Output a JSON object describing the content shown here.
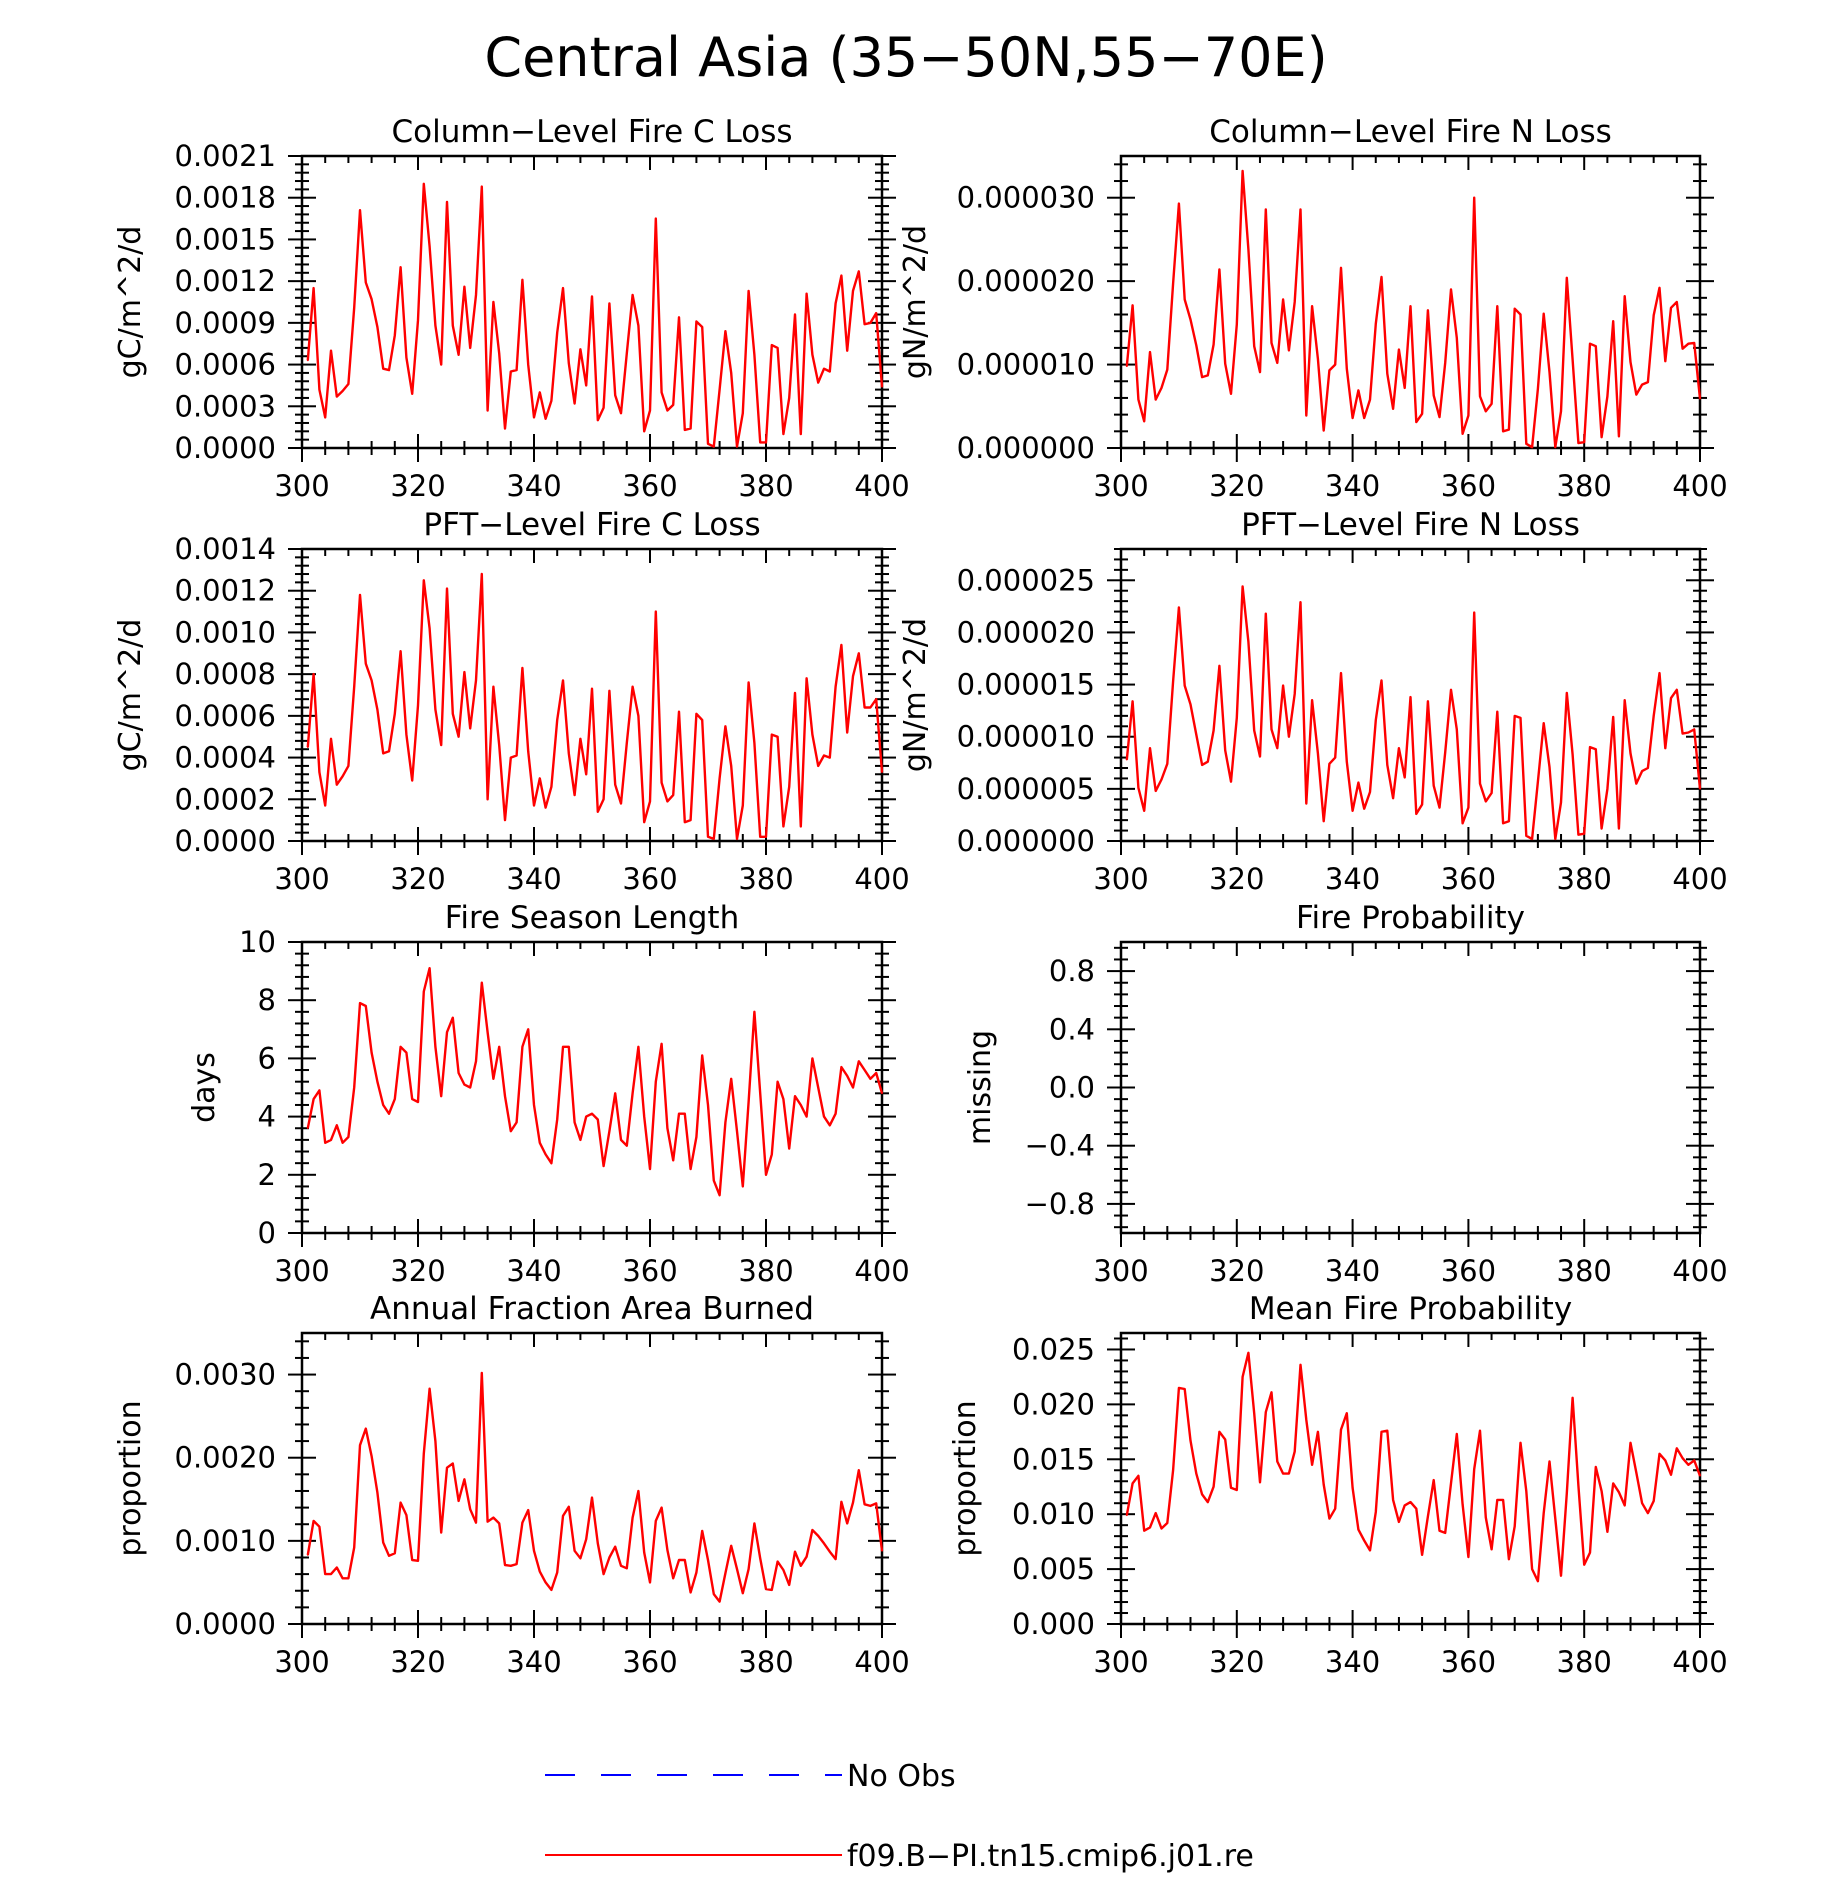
{
  "figure": {
    "title": "Central Asia (35−50N,55−70E)",
    "line_color": "#ff0000",
    "obs_color": "#0000ff"
  },
  "legend": {
    "items": [
      {
        "label": "No Obs",
        "style": "dashed",
        "color": "#0000ff"
      },
      {
        "label": "f09.B−PI.tn15.cmip6.j01.re",
        "style": "solid",
        "color": "#ff0000"
      }
    ]
  },
  "chart_data": [
    {
      "type": "line",
      "title": "Column−Level Fire C Loss",
      "ylabel": "gC/m^2/d",
      "xlim": [
        300,
        400
      ],
      "ylim": [
        0,
        0.0021
      ],
      "xticks": [
        300,
        320,
        340,
        360,
        380,
        400
      ],
      "yticks": [
        0.0,
        0.0003,
        0.0006,
        0.0009,
        0.0012,
        0.0015,
        0.0018,
        0.0021
      ],
      "ytick_labels": [
        "0.0000",
        "0.0003",
        "0.0006",
        "0.0009",
        "0.0012",
        "0.0015",
        "0.0018",
        "0.0021"
      ],
      "series": [
        {
          "x_start": 301,
          "values": [
            0.00063,
            0.00115,
            0.00042,
            0.00022,
            0.0007,
            0.00037,
            0.00041,
            0.00046,
            0.00101,
            0.00171,
            0.00119,
            0.00107,
            0.00087,
            0.00057,
            0.00056,
            0.00081,
            0.0013,
            0.00065,
            0.00039,
            0.00092,
            0.0019,
            0.00145,
            0.00088,
            0.0006,
            0.00177,
            0.00088,
            0.00067,
            0.00116,
            0.00072,
            0.0011,
            0.00188,
            0.00027,
            0.00105,
            0.00068,
            0.00014,
            0.00055,
            0.00056,
            0.00121,
            0.0006,
            0.00022,
            0.0004,
            0.00021,
            0.00034,
            0.00083,
            0.00115,
            0.00061,
            0.00032,
            0.00071,
            0.00045,
            0.00109,
            0.0002,
            0.00029,
            0.00104,
            0.00038,
            0.00025,
            0.00068,
            0.0011,
            0.00088,
            0.00012,
            0.00027,
            0.00165,
            0.0004,
            0.00027,
            0.00031,
            0.00094,
            0.00013,
            0.00014,
            0.00091,
            0.00087,
            3e-05,
            1e-05,
            0.00042,
            0.00084,
            0.00054,
            1e-05,
            0.00025,
            0.00113,
            0.00067,
            4e-05,
            4e-05,
            0.00074,
            0.00072,
            0.0001,
            0.00036,
            0.00096,
            0.0001,
            0.00111,
            0.00067,
            0.00047,
            0.00057,
            0.00055,
            0.00104,
            0.00124,
            0.0007,
            0.00113,
            0.00127,
            0.00089,
            0.0009,
            0.00097,
            0.00044
          ]
        }
      ]
    },
    {
      "type": "line",
      "title": "Column−Level Fire N Loss",
      "ylabel": "gN/m^2/d",
      "xlim": [
        300,
        400
      ],
      "ylim": [
        0,
        3.5e-05
      ],
      "xticks": [
        300,
        320,
        340,
        360,
        380,
        400
      ],
      "yticks": [
        0.0,
        1e-05,
        2e-05,
        3e-05
      ],
      "ytick_labels": [
        "0.000000",
        "0.000010",
        "0.000020",
        "0.000030"
      ],
      "series": [
        {
          "x_start": 301,
          "values": [
            9.8e-06,
            1.71e-05,
            5.8e-06,
            3.2e-06,
            1.15e-05,
            5.8e-06,
            7.2e-06,
            9.4e-06,
            1.97e-05,
            2.93e-05,
            1.78e-05,
            1.54e-05,
            1.23e-05,
            8.5e-06,
            8.7e-06,
            1.24e-05,
            2.14e-05,
            1.01e-05,
            6.5e-06,
            1.48e-05,
            3.32e-05,
            2.38e-05,
            1.22e-05,
            9.1e-06,
            2.86e-05,
            1.26e-05,
            1.02e-05,
            1.78e-05,
            1.17e-05,
            1.75e-05,
            2.86e-05,
            3.9e-06,
            1.7e-05,
            1.07e-05,
            2.1e-06,
            9.3e-06,
            1e-05,
            2.16e-05,
            9.5e-06,
            3.6e-06,
            6.9e-06,
            3.6e-06,
            5.8e-06,
            1.49e-05,
            2.05e-05,
            8.9e-06,
            4.7e-06,
            1.18e-05,
            7.2e-06,
            1.7e-05,
            3.1e-06,
            4.1e-06,
            1.65e-05,
            6.3e-06,
            3.7e-06,
            1.02e-05,
            1.9e-05,
            1.32e-05,
            1.7e-06,
            3.9e-06,
            3e-05,
            6.2e-06,
            4.4e-06,
            5.3e-06,
            1.7e-05,
            2e-06,
            2.2e-06,
            1.67e-05,
            1.6e-05,
            5e-07,
            1e-07,
            7.1e-06,
            1.61e-05,
            9.1e-06,
            1e-07,
            4.4e-06,
            2.04e-05,
            1.06e-05,
            6e-07,
            7e-07,
            1.25e-05,
            1.22e-05,
            1.3e-06,
            6.2e-06,
            1.52e-05,
            1.4e-06,
            1.82e-05,
            1.03e-05,
            6.4e-06,
            7.6e-06,
            7.9e-06,
            1.59e-05,
            1.92e-05,
            1.04e-05,
            1.68e-05,
            1.75e-05,
            1.19e-05,
            1.25e-05,
            1.26e-05,
            5.9e-06
          ]
        }
      ]
    },
    {
      "type": "line",
      "title": "PFT−Level Fire C Loss",
      "ylabel": "gC/m^2/d",
      "xlim": [
        300,
        400
      ],
      "ylim": [
        0,
        0.0014
      ],
      "xticks": [
        300,
        320,
        340,
        360,
        380,
        400
      ],
      "yticks": [
        0.0,
        0.0002,
        0.0004,
        0.0006,
        0.0008,
        0.001,
        0.0012,
        0.0014
      ],
      "ytick_labels": [
        "0.0000",
        "0.0002",
        "0.0004",
        "0.0006",
        "0.0008",
        "0.0010",
        "0.0012",
        "0.0014"
      ],
      "series": [
        {
          "x_start": 301,
          "values": [
            0.00045,
            0.0008,
            0.00033,
            0.00017,
            0.00049,
            0.00027,
            0.00031,
            0.00036,
            0.00074,
            0.00118,
            0.00085,
            0.00077,
            0.00063,
            0.00042,
            0.00043,
            0.00061,
            0.00091,
            0.00051,
            0.00029,
            0.00065,
            0.00125,
            0.00102,
            0.00063,
            0.00046,
            0.00121,
            0.00061,
            0.0005,
            0.00081,
            0.00054,
            0.00077,
            0.00128,
            0.0002,
            0.00074,
            0.00046,
            0.0001,
            0.0004,
            0.00041,
            0.00083,
            0.00043,
            0.00017,
            0.0003,
            0.00016,
            0.00026,
            0.00058,
            0.00077,
            0.00042,
            0.00022,
            0.00049,
            0.00032,
            0.00073,
            0.00014,
            0.0002,
            0.00072,
            0.00027,
            0.00018,
            0.00047,
            0.00074,
            0.0006,
            9e-05,
            0.00019,
            0.0011,
            0.00028,
            0.00019,
            0.00022,
            0.00062,
            9e-05,
            0.0001,
            0.00061,
            0.00058,
            2e-05,
            1e-05,
            0.0003,
            0.00055,
            0.00036,
            1e-05,
            0.00017,
            0.00076,
            0.00047,
            2e-05,
            2e-05,
            0.00051,
            0.0005,
            7e-05,
            0.00026,
            0.00071,
            7e-05,
            0.00078,
            0.00051,
            0.00036,
            0.00041,
            0.0004,
            0.00074,
            0.00094,
            0.00052,
            0.00079,
            0.0009,
            0.00064,
            0.00064,
            0.00068,
            0.00033
          ]
        }
      ]
    },
    {
      "type": "line",
      "title": "PFT−Level Fire N Loss",
      "ylabel": "gN/m^2/d",
      "xlim": [
        300,
        400
      ],
      "ylim": [
        0,
        2.8e-05
      ],
      "xticks": [
        300,
        320,
        340,
        360,
        380,
        400
      ],
      "yticks": [
        0.0,
        5e-06,
        1e-05,
        1.5e-05,
        2e-05,
        2.5e-05
      ],
      "ytick_labels": [
        "0.000000",
        "0.000005",
        "0.000010",
        "0.000015",
        "0.000020",
        "0.000025"
      ],
      "series": [
        {
          "x_start": 301,
          "values": [
            7.8e-06,
            1.34e-05,
            5.1e-06,
            2.9e-06,
            8.9e-06,
            4.8e-06,
            5.9e-06,
            7.4e-06,
            1.53e-05,
            2.24e-05,
            1.49e-05,
            1.31e-05,
            1.02e-05,
            7.3e-06,
            7.6e-06,
            1.06e-05,
            1.68e-05,
            8.7e-06,
            5.7e-06,
            1.18e-05,
            2.44e-05,
            1.91e-05,
            1.06e-05,
            8.1e-06,
            2.18e-05,
            1.07e-05,
            8.9e-06,
            1.49e-05,
            1e-05,
            1.41e-05,
            2.29e-05,
            3.6e-06,
            1.35e-05,
            8.4e-06,
            1.9e-06,
            7.4e-06,
            8e-06,
            1.61e-05,
            7.6e-06,
            2.9e-06,
            5.6e-06,
            3.1e-06,
            4.7e-06,
            1.16e-05,
            1.54e-05,
            7.3e-06,
            4.1e-06,
            8.9e-06,
            6.1e-06,
            1.38e-05,
            2.6e-06,
            3.5e-06,
            1.34e-05,
            5.3e-06,
            3.2e-06,
            8.5e-06,
            1.45e-05,
            1.07e-05,
            1.7e-06,
            3.2e-06,
            2.19e-05,
            5.5e-06,
            3.8e-06,
            4.6e-06,
            1.24e-05,
            1.7e-06,
            1.9e-06,
            1.2e-05,
            1.18e-05,
            5e-07,
            2e-07,
            5.7e-06,
            1.13e-05,
            7.1e-06,
            2e-07,
            3.7e-06,
            1.42e-05,
            8.3e-06,
            6e-07,
            7e-07,
            9e-06,
            8.8e-06,
            1.2e-06,
            5e-06,
            1.19e-05,
            1.2e-06,
            1.35e-05,
            8.4e-06,
            5.5e-06,
            6.7e-06,
            7e-06,
            1.2e-05,
            1.61e-05,
            8.9e-06,
            1.37e-05,
            1.45e-05,
            1.03e-05,
            1.04e-05,
            1.07e-05,
            5e-06
          ]
        }
      ]
    },
    {
      "type": "line",
      "title": "Fire Season Length",
      "ylabel": "days",
      "xlim": [
        300,
        400
      ],
      "ylim": [
        0,
        10
      ],
      "xticks": [
        300,
        320,
        340,
        360,
        380,
        400
      ],
      "yticks": [
        0,
        2,
        4,
        6,
        8,
        10
      ],
      "ytick_labels": [
        "0",
        "2",
        "4",
        "6",
        "8",
        "10"
      ],
      "series": [
        {
          "x_start": 301,
          "values": [
            3.6,
            4.6,
            4.9,
            3.1,
            3.2,
            3.7,
            3.1,
            3.3,
            5.0,
            7.9,
            7.8,
            6.2,
            5.2,
            4.4,
            4.1,
            4.6,
            6.4,
            6.2,
            4.6,
            4.5,
            8.3,
            9.1,
            6.4,
            4.7,
            6.9,
            7.4,
            5.5,
            5.1,
            5.0,
            5.9,
            8.6,
            6.9,
            5.3,
            6.4,
            4.7,
            3.5,
            3.8,
            6.4,
            7.0,
            4.4,
            3.1,
            2.7,
            2.4,
            3.9,
            6.4,
            6.4,
            3.8,
            3.2,
            4.0,
            4.1,
            3.9,
            2.3,
            3.5,
            4.8,
            3.2,
            3.0,
            4.8,
            6.4,
            4.0,
            2.2,
            5.2,
            6.5,
            3.6,
            2.5,
            4.1,
            4.1,
            2.2,
            3.3,
            6.1,
            4.4,
            1.8,
            1.3,
            3.8,
            5.3,
            3.5,
            1.6,
            4.5,
            7.6,
            4.8,
            2.0,
            2.7,
            5.2,
            4.6,
            2.9,
            4.7,
            4.4,
            4.0,
            6.0,
            5.0,
            4.0,
            3.7,
            4.1,
            5.7,
            5.4,
            5.0,
            5.9,
            5.6,
            5.3,
            5.5,
            4.8
          ]
        }
      ]
    },
    {
      "type": "line",
      "title": "Fire Probability",
      "ylabel": "missing",
      "xlim": [
        300,
        400
      ],
      "ylim": [
        -1,
        1
      ],
      "xticks": [
        300,
        320,
        340,
        360,
        380,
        400
      ],
      "yticks": [
        -0.8,
        -0.4,
        0.0,
        0.4,
        0.8
      ],
      "ytick_labels": [
        "−0.8",
        "−0.4",
        "0.0",
        "0.4",
        "0.8"
      ],
      "series": []
    },
    {
      "type": "line",
      "title": "Annual Fraction Area Burned",
      "ylabel": "proportion",
      "xlim": [
        300,
        400
      ],
      "ylim": [
        0,
        0.0035
      ],
      "xticks": [
        300,
        320,
        340,
        360,
        380,
        400
      ],
      "yticks": [
        0.0,
        0.001,
        0.002,
        0.003
      ],
      "ytick_labels": [
        "0.0000",
        "0.0010",
        "0.0020",
        "0.0030"
      ],
      "series": [
        {
          "x_start": 301,
          "values": [
            0.00083,
            0.00124,
            0.00117,
            0.0006,
            0.0006,
            0.00068,
            0.00055,
            0.00055,
            0.00092,
            0.00215,
            0.00235,
            0.00202,
            0.00158,
            0.00098,
            0.00082,
            0.00085,
            0.00146,
            0.00131,
            0.00077,
            0.00076,
            0.00205,
            0.00283,
            0.0022,
            0.0011,
            0.00188,
            0.00193,
            0.00148,
            0.00174,
            0.00138,
            0.00122,
            0.00302,
            0.00123,
            0.00128,
            0.00121,
            0.00071,
            0.0007,
            0.00072,
            0.00122,
            0.00137,
            0.00088,
            0.00063,
            0.0005,
            0.00041,
            0.00062,
            0.0013,
            0.00141,
            0.00088,
            0.00079,
            0.00102,
            0.00152,
            0.00097,
            0.0006,
            0.0008,
            0.00093,
            0.0007,
            0.00067,
            0.00128,
            0.0016,
            0.00086,
            0.0005,
            0.00124,
            0.0014,
            0.00089,
            0.00055,
            0.00077,
            0.00077,
            0.00038,
            0.00062,
            0.00112,
            0.00077,
            0.00036,
            0.00027,
            0.00061,
            0.00094,
            0.00066,
            0.00037,
            0.00066,
            0.00121,
            0.00079,
            0.00042,
            0.00041,
            0.00075,
            0.00065,
            0.00047,
            0.00087,
            0.0007,
            0.00081,
            0.00113,
            0.00106,
            0.00097,
            0.00087,
            0.00078,
            0.00147,
            0.00121,
            0.00146,
            0.00185,
            0.00144,
            0.00142,
            0.00145,
            0.00088
          ]
        }
      ]
    },
    {
      "type": "line",
      "title": "Mean Fire Probability",
      "ylabel": "proportion",
      "xlim": [
        300,
        400
      ],
      "ylim": [
        0,
        0.0265
      ],
      "xticks": [
        300,
        320,
        340,
        360,
        380,
        400
      ],
      "yticks": [
        0.0,
        0.005,
        0.01,
        0.015,
        0.02,
        0.025
      ],
      "ytick_labels": [
        "0.000",
        "0.005",
        "0.010",
        "0.015",
        "0.020",
        "0.025"
      ],
      "series": [
        {
          "x_start": 301,
          "values": [
            0.0099,
            0.0128,
            0.0135,
            0.0085,
            0.0088,
            0.0101,
            0.0087,
            0.0092,
            0.014,
            0.0215,
            0.0214,
            0.0167,
            0.0137,
            0.0118,
            0.0111,
            0.0125,
            0.0175,
            0.0168,
            0.0124,
            0.0122,
            0.0225,
            0.0247,
            0.0192,
            0.0129,
            0.0193,
            0.0211,
            0.0148,
            0.0137,
            0.0137,
            0.0157,
            0.0236,
            0.0186,
            0.0145,
            0.0175,
            0.0127,
            0.0096,
            0.0105,
            0.0177,
            0.0192,
            0.0124,
            0.0086,
            0.0076,
            0.0067,
            0.0102,
            0.0175,
            0.0176,
            0.0113,
            0.0093,
            0.0108,
            0.0111,
            0.0105,
            0.0063,
            0.0098,
            0.0131,
            0.0085,
            0.0083,
            0.0128,
            0.0173,
            0.0109,
            0.0061,
            0.0141,
            0.0176,
            0.0097,
            0.0068,
            0.0113,
            0.0113,
            0.0059,
            0.0089,
            0.0165,
            0.0121,
            0.005,
            0.0039,
            0.0101,
            0.0148,
            0.0096,
            0.0044,
            0.0119,
            0.0206,
            0.0126,
            0.0054,
            0.0065,
            0.0143,
            0.0121,
            0.0084,
            0.0128,
            0.012,
            0.0108,
            0.0165,
            0.0138,
            0.011,
            0.0101,
            0.0112,
            0.0155,
            0.0149,
            0.0136,
            0.016,
            0.0151,
            0.0145,
            0.0149,
            0.0135
          ]
        }
      ]
    }
  ]
}
